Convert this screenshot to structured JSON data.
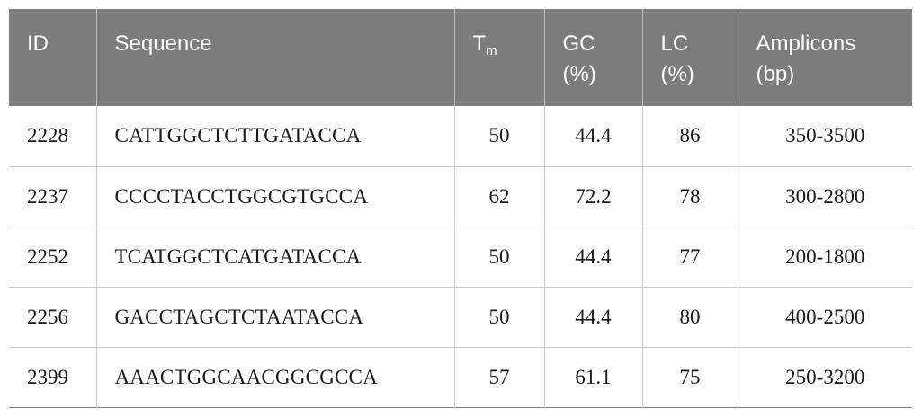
{
  "table": {
    "headers": {
      "id": "ID",
      "sequence": "Sequence",
      "tm_main": "T",
      "tm_sub": "m",
      "gc_line1": "GC",
      "gc_line2": "(%)",
      "lc_line1": "LC",
      "lc_line2": "(%)",
      "amp_line1": "Amplicons",
      "amp_line2": "(bp)"
    },
    "rows": [
      {
        "id": "2228",
        "sequence": "CATTGGCTCTTGATACCA",
        "tm": "50",
        "gc": "44.4",
        "lc": "86",
        "amplicons": "350-3500"
      },
      {
        "id": "2237",
        "sequence": "CCCCTACCTGGCGTGCCA",
        "tm": "62",
        "gc": "72.2",
        "lc": "78",
        "amplicons": "300-2800"
      },
      {
        "id": "2252",
        "sequence": "TCATGGCTCATGATACCA",
        "tm": "50",
        "gc": "44.4",
        "lc": "77",
        "amplicons": "200-1800"
      },
      {
        "id": "2256",
        "sequence": "GACCTAGCTCTAATACCA",
        "tm": "50",
        "gc": "44.4",
        "lc": "80",
        "amplicons": "400-2500"
      },
      {
        "id": "2399",
        "sequence": "AAACTGGCAACGGCGCCA",
        "tm": "57",
        "gc": "61.1",
        "lc": "75",
        "amplicons": "250-3200"
      }
    ]
  }
}
